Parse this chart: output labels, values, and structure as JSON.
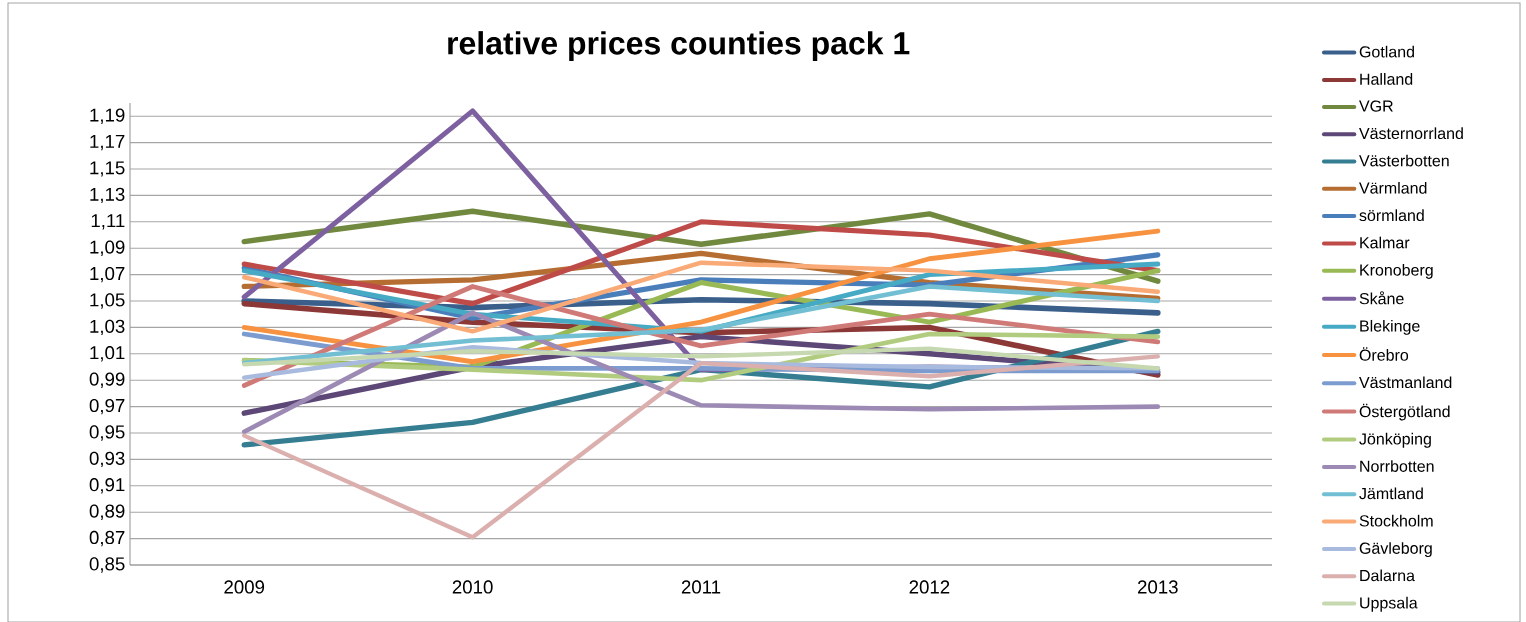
{
  "chart_data": {
    "type": "line",
    "title": "relative prices counties pack 1",
    "categories": [
      "2009",
      "2010",
      "2011",
      "2012",
      "2013"
    ],
    "ylim": [
      0.85,
      1.2
    ],
    "yticks": [
      {
        "value": 0.85,
        "label": "0,85"
      },
      {
        "value": 0.87,
        "label": "0,87"
      },
      {
        "value": 0.89,
        "label": "0,89"
      },
      {
        "value": 0.91,
        "label": "0,91"
      },
      {
        "value": 0.93,
        "label": "0,93"
      },
      {
        "value": 0.95,
        "label": "0,95"
      },
      {
        "value": 0.97,
        "label": "0,97"
      },
      {
        "value": 0.99,
        "label": "0,99"
      },
      {
        "value": 1.01,
        "label": "1,01"
      },
      {
        "value": 1.03,
        "label": "1,03"
      },
      {
        "value": 1.05,
        "label": "1,05"
      },
      {
        "value": 1.07,
        "label": "1,07"
      },
      {
        "value": 1.09,
        "label": "1,09"
      },
      {
        "value": 1.11,
        "label": "1,11"
      },
      {
        "value": 1.13,
        "label": "1,13"
      },
      {
        "value": 1.15,
        "label": "1,15"
      },
      {
        "value": 1.17,
        "label": "1,17"
      },
      {
        "value": 1.19,
        "label": "1,19"
      }
    ],
    "grid": "y",
    "legend": "right",
    "marker": "none",
    "line_style": "solid",
    "series": [
      {
        "name": "Gotland",
        "color": "#3a5f8b",
        "values": [
          1.05,
          1.045,
          1.051,
          1.048,
          1.041
        ]
      },
      {
        "name": "Halland",
        "color": "#8c3836",
        "values": [
          1.048,
          1.034,
          1.026,
          1.03,
          0.994
        ]
      },
      {
        "name": "VGR",
        "color": "#71893f",
        "values": [
          1.095,
          1.118,
          1.093,
          1.116,
          1.065
        ]
      },
      {
        "name": "Västernorrland",
        "color": "#5c4776",
        "values": [
          0.965,
          1.0,
          1.023,
          1.01,
          0.996
        ]
      },
      {
        "name": "Västerbotten",
        "color": "#357d91",
        "values": [
          0.941,
          0.958,
          0.998,
          0.985,
          1.027
        ]
      },
      {
        "name": "Värmland",
        "color": "#b66d31",
        "values": [
          1.061,
          1.066,
          1.086,
          1.064,
          1.052
        ]
      },
      {
        "name": "sörmland",
        "color": "#4a7ebb",
        "values": [
          1.075,
          1.037,
          1.066,
          1.062,
          1.085
        ]
      },
      {
        "name": "Kalmar",
        "color": "#be4b48",
        "values": [
          1.078,
          1.048,
          1.11,
          1.1,
          1.073
        ]
      },
      {
        "name": "Kronoberg",
        "color": "#98b954",
        "values": [
          1.005,
          1.0,
          1.064,
          1.034,
          1.073
        ]
      },
      {
        "name": "Skåne",
        "color": "#7d60a0",
        "values": [
          1.053,
          1.194,
          0.998,
          1.0,
          0.998
        ]
      },
      {
        "name": "Blekinge",
        "color": "#46aac5",
        "values": [
          1.073,
          1.04,
          1.027,
          1.07,
          1.078
        ]
      },
      {
        "name": "Örebro",
        "color": "#f69240",
        "values": [
          1.03,
          1.004,
          1.034,
          1.082,
          1.103
        ]
      },
      {
        "name": "Västmanland",
        "color": "#7c9ccf",
        "values": [
          1.025,
          0.999,
          0.999,
          0.997,
          0.997
        ]
      },
      {
        "name": "Östergötland",
        "color": "#d07a78",
        "values": [
          0.986,
          1.061,
          1.016,
          1.04,
          1.019
        ]
      },
      {
        "name": "Jönköping",
        "color": "#b1cc7f",
        "values": [
          1.005,
          0.998,
          0.99,
          1.025,
          1.023
        ]
      },
      {
        "name": "Norrbotten",
        "color": "#9c8ab4",
        "values": [
          0.951,
          1.041,
          0.971,
          0.968,
          0.97
        ]
      },
      {
        "name": "Jämtland",
        "color": "#72bfd4",
        "values": [
          1.003,
          1.02,
          1.028,
          1.061,
          1.05
        ]
      },
      {
        "name": "Stockholm",
        "color": "#f9aa76",
        "values": [
          1.068,
          1.027,
          1.079,
          1.073,
          1.057
        ]
      },
      {
        "name": "Gävleborg",
        "color": "#a8bbdf",
        "values": [
          0.992,
          1.015,
          1.003,
          1.0,
          0.999
        ]
      },
      {
        "name": "Dalarna",
        "color": "#dbafad",
        "values": [
          0.948,
          0.871,
          1.003,
          0.993,
          1.008
        ]
      },
      {
        "name": "Uppsala",
        "color": "#c6d8af",
        "values": [
          1.002,
          1.012,
          1.008,
          1.014,
          0.999
        ]
      }
    ]
  }
}
